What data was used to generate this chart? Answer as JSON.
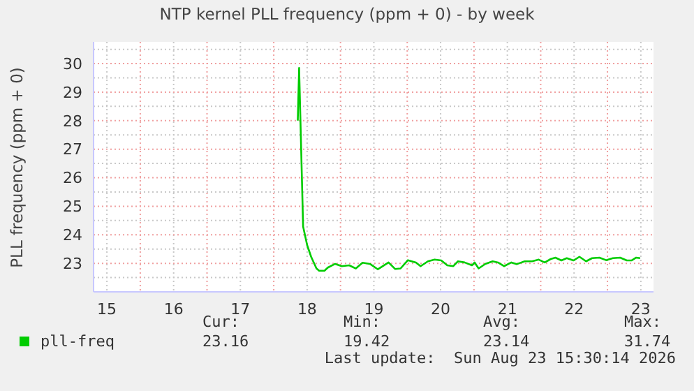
{
  "chart_data": {
    "type": "line",
    "title": "NTP kernel PLL frequency (ppm + 0) - by week",
    "ylabel": "PLL frequency (ppm + 0)",
    "series": [
      {
        "name": "pll-freq",
        "color": "#00cc00",
        "x": [
          18.36,
          18.38,
          18.44,
          18.5,
          18.56,
          18.64,
          18.68,
          18.76,
          18.81,
          18.92,
          19.02,
          19.13,
          19.23,
          19.33,
          19.44,
          19.56,
          19.72,
          19.82,
          19.9,
          20.01,
          20.13,
          20.2,
          20.31,
          20.41,
          20.51,
          20.6,
          20.69,
          20.76,
          20.86,
          20.97,
          21.01,
          21.07,
          21.17,
          21.28,
          21.36,
          21.45,
          21.56,
          21.64,
          21.76,
          21.87,
          21.97,
          22.06,
          22.15,
          22.22,
          22.31,
          22.39,
          22.49,
          22.58,
          22.68,
          22.77,
          22.88,
          22.98,
          23.08,
          23.19,
          23.29,
          23.36,
          23.43,
          23.49
        ],
        "values": [
          28.0,
          29.85,
          24.29,
          23.64,
          23.23,
          22.82,
          22.74,
          22.74,
          22.85,
          22.98,
          22.9,
          22.93,
          22.82,
          23.02,
          22.98,
          22.79,
          23.03,
          22.8,
          22.82,
          23.11,
          23.03,
          22.9,
          23.07,
          23.13,
          23.1,
          22.93,
          22.9,
          23.07,
          23.03,
          22.93,
          23.03,
          22.82,
          22.98,
          23.07,
          23.03,
          22.9,
          23.03,
          22.97,
          23.07,
          23.07,
          23.13,
          23.03,
          23.15,
          23.2,
          23.1,
          23.18,
          23.1,
          23.23,
          23.07,
          23.18,
          23.2,
          23.11,
          23.18,
          23.2,
          23.1,
          23.1,
          23.2,
          23.18
        ]
      }
    ],
    "xlim": [
      15.3,
      23.69
    ],
    "xticks": [
      {
        "value": 15.5,
        "label": "15"
      },
      {
        "value": 16,
        "label": null
      },
      {
        "value": 16.5,
        "label": "16"
      },
      {
        "value": 17,
        "label": null
      },
      {
        "value": 17.5,
        "label": "17"
      },
      {
        "value": 18,
        "label": null
      },
      {
        "value": 18.5,
        "label": "18"
      },
      {
        "value": 19,
        "label": null
      },
      {
        "value": 19.5,
        "label": "19"
      },
      {
        "value": 20,
        "label": null
      },
      {
        "value": 20.5,
        "label": "20"
      },
      {
        "value": 21,
        "label": null
      },
      {
        "value": 21.5,
        "label": "21"
      },
      {
        "value": 22,
        "label": null
      },
      {
        "value": 22.5,
        "label": "22"
      },
      {
        "value": 23,
        "label": null
      },
      {
        "value": 23.5,
        "label": "23"
      }
    ],
    "ylim": [
      22,
      30.76
    ],
    "yticks": [
      {
        "value": 22.5,
        "label": null
      },
      23,
      {
        "value": 23.5,
        "label": null
      },
      24,
      {
        "value": 24.5,
        "label": null
      },
      25,
      {
        "value": 25.5,
        "label": null
      },
      26,
      {
        "value": 26.5,
        "label": null
      },
      27,
      {
        "value": 27.5,
        "label": null
      },
      28,
      {
        "value": 28.5,
        "label": null
      },
      29,
      {
        "value": 29.5,
        "label": null
      },
      30,
      {
        "value": 30.5,
        "label": null
      }
    ],
    "grid": true,
    "legend": "bottom left",
    "marker": "none",
    "line_style": "solid",
    "annotations": [
      "Cur:",
      "Min:",
      "Avg:",
      "Max:",
      "23.16",
      "19.42",
      "23.14",
      "31.74",
      "Last update:  Sun Aug 23 15:30:14 2026"
    ]
  }
}
